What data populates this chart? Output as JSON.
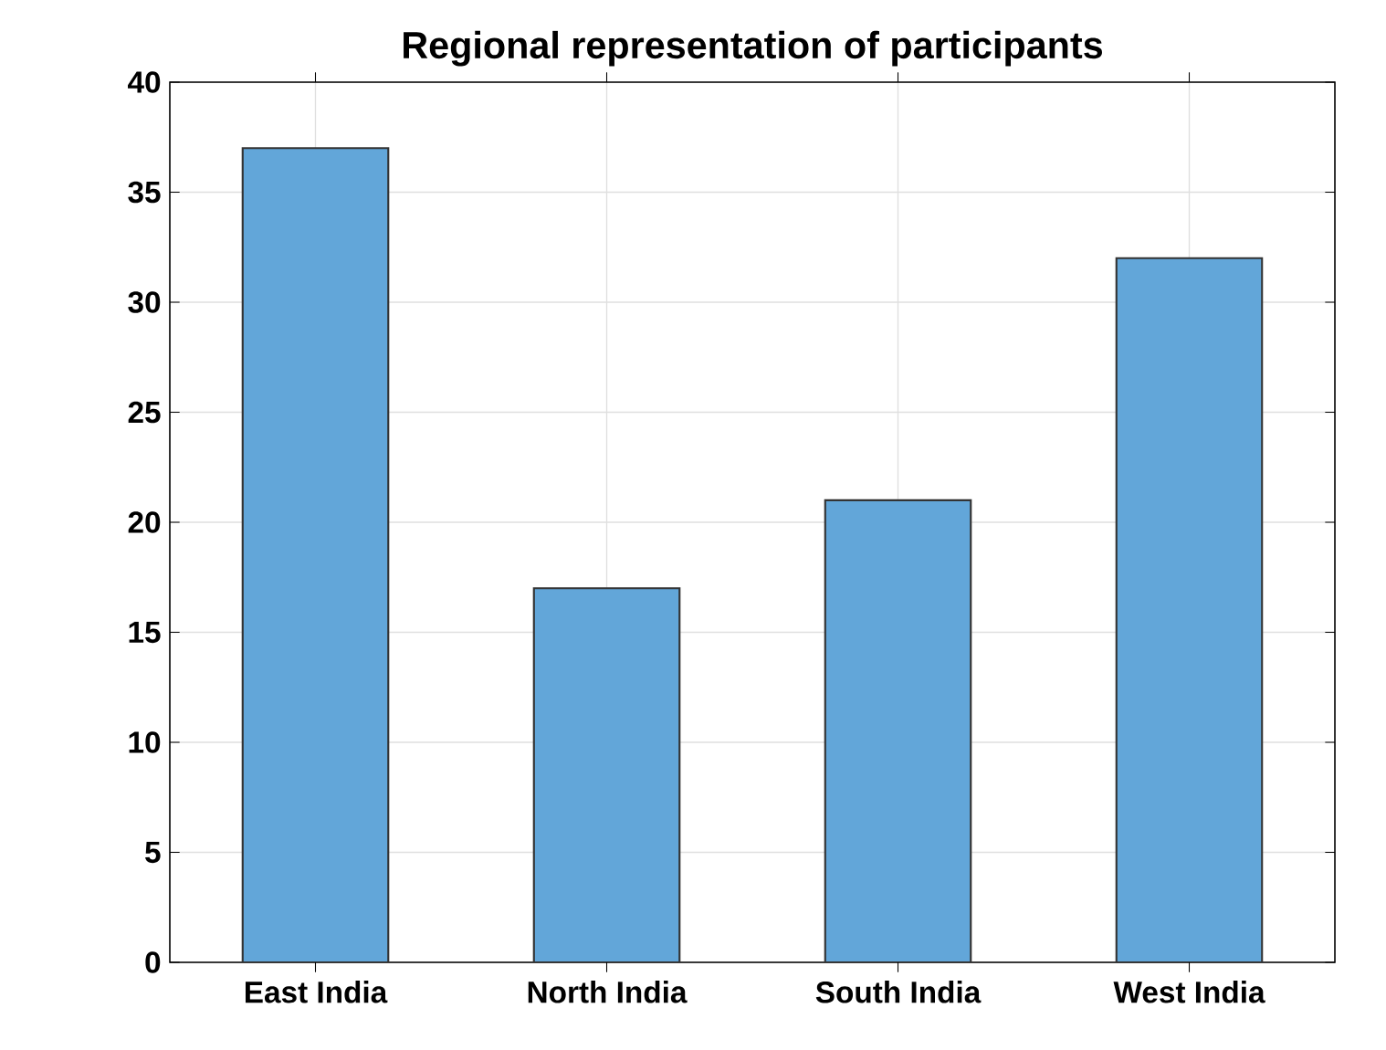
{
  "chart_data": {
    "type": "bar",
    "title": "Regional representation of participants",
    "categories": [
      "East India",
      "North India",
      "South India",
      "West India"
    ],
    "values": [
      37,
      17,
      21,
      32
    ],
    "color": "#62a6d9",
    "ylim": [
      0,
      40
    ],
    "yticks": [
      0,
      5,
      10,
      15,
      20,
      25,
      30,
      35,
      40
    ],
    "grid": true
  }
}
